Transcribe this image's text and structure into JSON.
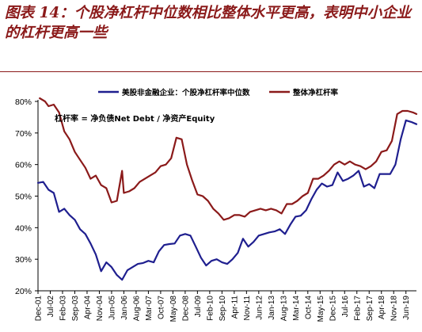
{
  "figure": {
    "title": "图表 14：个股净杠杆中位数相比整体水平更高，表明中小企业的杠杆更高一些"
  },
  "chart_data": {
    "type": "line",
    "annotation": "杠杆率 = 净负债Net Debt / 净资产Equity",
    "ylim": [
      20,
      80
    ],
    "yticks": [
      "20%",
      "30%",
      "40%",
      "50%",
      "60%",
      "70%",
      "80%"
    ],
    "ytick_values": [
      20,
      30,
      40,
      50,
      60,
      70,
      80
    ],
    "xticks": [
      "Dec-01",
      "Jul-02",
      "Feb-03",
      "Sep-03",
      "Apr-04",
      "Nov-04",
      "Jun-05",
      "Jan-06",
      "Aug-06",
      "Mar-07",
      "Oct-07",
      "May-08",
      "Dec-08",
      "Jul-09",
      "Feb-10",
      "Sep-10",
      "Apr-11",
      "Nov-11",
      "Jun-12",
      "Jan-13",
      "Aug-13",
      "Mar-14",
      "Oct-14",
      "May-15",
      "Dec-15",
      "Jul-16",
      "Feb-17",
      "Sep-17",
      "Apr-18",
      "Nov-18",
      "Jun-19"
    ],
    "legend_position": "top",
    "grid": false,
    "series": [
      {
        "name": "美股非金融企业：个股净杠杆率中位数",
        "color": "#1f1f8f",
        "points": [
          [
            "Dec-01",
            54.2
          ],
          [
            "Mar-02",
            54.5
          ],
          [
            "Jun-02",
            52.0
          ],
          [
            "Sep-02",
            51.0
          ],
          [
            "Dec-02",
            45.0
          ],
          [
            "Mar-03",
            46.0
          ],
          [
            "Jun-03",
            44.0
          ],
          [
            "Sep-03",
            42.5
          ],
          [
            "Dec-03",
            39.5
          ],
          [
            "Mar-04",
            38.0
          ],
          [
            "Jun-04",
            35.0
          ],
          [
            "Sep-04",
            31.5
          ],
          [
            "Dec-04",
            26.2
          ],
          [
            "Mar-05",
            29.0
          ],
          [
            "Jun-05",
            27.5
          ],
          [
            "Sep-05",
            25.0
          ],
          [
            "Dec-05",
            23.5
          ],
          [
            "Mar-06",
            26.5
          ],
          [
            "Jun-06",
            27.5
          ],
          [
            "Sep-06",
            28.5
          ],
          [
            "Dec-06",
            28.8
          ],
          [
            "Mar-07",
            29.5
          ],
          [
            "Jun-07",
            29.0
          ],
          [
            "Sep-07",
            32.5
          ],
          [
            "Dec-07",
            34.5
          ],
          [
            "Mar-08",
            34.8
          ],
          [
            "Jun-08",
            35.0
          ],
          [
            "Sep-08",
            37.5
          ],
          [
            "Dec-08",
            38.0
          ],
          [
            "Mar-09",
            37.5
          ],
          [
            "Jun-09",
            34.0
          ],
          [
            "Sep-09",
            30.5
          ],
          [
            "Dec-09",
            28.0
          ],
          [
            "Mar-10",
            29.5
          ],
          [
            "Jun-10",
            30.0
          ],
          [
            "Sep-10",
            29.0
          ],
          [
            "Dec-10",
            28.5
          ],
          [
            "Mar-11",
            30.0
          ],
          [
            "Jun-11",
            32.0
          ],
          [
            "Sep-11",
            36.5
          ],
          [
            "Dec-11",
            34.0
          ],
          [
            "Mar-12",
            35.5
          ],
          [
            "Jun-12",
            37.5
          ],
          [
            "Sep-12",
            38.0
          ],
          [
            "Dec-12",
            38.5
          ],
          [
            "Mar-13",
            38.8
          ],
          [
            "Jun-13",
            39.5
          ],
          [
            "Sep-13",
            38.0
          ],
          [
            "Dec-13",
            41.0
          ],
          [
            "Mar-14",
            43.5
          ],
          [
            "Jun-14",
            43.8
          ],
          [
            "Sep-14",
            45.5
          ],
          [
            "Dec-14",
            49.0
          ],
          [
            "Mar-15",
            52.0
          ],
          [
            "Jun-15",
            54.0
          ],
          [
            "Sep-15",
            53.0
          ],
          [
            "Dec-15",
            53.5
          ],
          [
            "Mar-16",
            57.5
          ],
          [
            "Jun-16",
            54.8
          ],
          [
            "Sep-16",
            55.5
          ],
          [
            "Dec-16",
            56.5
          ],
          [
            "Mar-17",
            58.0
          ],
          [
            "Jun-17",
            53.0
          ],
          [
            "Sep-17",
            53.8
          ],
          [
            "Dec-17",
            52.5
          ],
          [
            "Mar-18",
            57.0
          ],
          [
            "Jun-18",
            57.0
          ],
          [
            "Sep-18",
            57.0
          ],
          [
            "Dec-18",
            60.0
          ],
          [
            "Mar-19",
            68.0
          ],
          [
            "Jun-19",
            74.0
          ],
          [
            "Sep-19",
            73.5
          ],
          [
            "Dec-19",
            72.8
          ]
        ]
      },
      {
        "name": "整体净杠杆率",
        "color": "#8b1a1a",
        "points": [
          [
            "Jan-02",
            81.0
          ],
          [
            "Apr-02",
            80.0
          ],
          [
            "Jun-02",
            78.5
          ],
          [
            "Sep-02",
            79.0
          ],
          [
            "Dec-02",
            76.5
          ],
          [
            "Mar-03",
            70.5
          ],
          [
            "Jun-03",
            68.0
          ],
          [
            "Sep-03",
            64.0
          ],
          [
            "Dec-03",
            61.5
          ],
          [
            "Mar-04",
            59.0
          ],
          [
            "Jun-04",
            55.5
          ],
          [
            "Sep-04",
            56.5
          ],
          [
            "Dec-04",
            53.5
          ],
          [
            "Mar-05",
            52.5
          ],
          [
            "Jun-05",
            48.0
          ],
          [
            "Sep-05",
            48.5
          ],
          [
            "Dec-05",
            58.0
          ],
          [
            "Jan-06",
            51.0
          ],
          [
            "Apr-06",
            51.5
          ],
          [
            "Jul-06",
            52.5
          ],
          [
            "Oct-06",
            54.5
          ],
          [
            "Jan-07",
            55.5
          ],
          [
            "Apr-07",
            56.5
          ],
          [
            "Jul-07",
            57.5
          ],
          [
            "Oct-07",
            59.5
          ],
          [
            "Jan-08",
            60.0
          ],
          [
            "Apr-08",
            62.0
          ],
          [
            "Jul-08",
            68.5
          ],
          [
            "Oct-08",
            68.0
          ],
          [
            "Jan-09",
            60.0
          ],
          [
            "Apr-09",
            55.0
          ],
          [
            "Jul-09",
            50.5
          ],
          [
            "Oct-09",
            50.0
          ],
          [
            "Jan-10",
            48.5
          ],
          [
            "Apr-10",
            46.0
          ],
          [
            "Jul-10",
            44.5
          ],
          [
            "Oct-10",
            42.5
          ],
          [
            "Jan-11",
            43.0
          ],
          [
            "Apr-11",
            44.0
          ],
          [
            "Jul-11",
            44.0
          ],
          [
            "Oct-11",
            43.5
          ],
          [
            "Jan-12",
            45.0
          ],
          [
            "Apr-12",
            45.5
          ],
          [
            "Jul-12",
            46.0
          ],
          [
            "Oct-12",
            45.5
          ],
          [
            "Jan-13",
            46.0
          ],
          [
            "Apr-13",
            45.5
          ],
          [
            "Jul-13",
            44.5
          ],
          [
            "Oct-13",
            47.5
          ],
          [
            "Jan-14",
            47.5
          ],
          [
            "Apr-14",
            48.5
          ],
          [
            "Jul-14",
            50.0
          ],
          [
            "Oct-14",
            51.0
          ],
          [
            "Jan-15",
            55.5
          ],
          [
            "Apr-15",
            55.5
          ],
          [
            "Jul-15",
            56.5
          ],
          [
            "Oct-15",
            58.0
          ],
          [
            "Jan-16",
            60.0
          ],
          [
            "Apr-16",
            61.0
          ],
          [
            "Jul-16",
            60.0
          ],
          [
            "Oct-16",
            61.0
          ],
          [
            "Jan-17",
            60.0
          ],
          [
            "Apr-17",
            59.5
          ],
          [
            "Jul-17",
            58.5
          ],
          [
            "Oct-17",
            59.5
          ],
          [
            "Jan-18",
            61.0
          ],
          [
            "Apr-18",
            64.0
          ],
          [
            "Jul-18",
            64.5
          ],
          [
            "Oct-18",
            67.5
          ],
          [
            "Jan-19",
            76.0
          ],
          [
            "Apr-19",
            77.0
          ],
          [
            "Jul-19",
            77.0
          ],
          [
            "Oct-19",
            76.5
          ],
          [
            "Dec-19",
            76.0
          ]
        ]
      }
    ]
  }
}
